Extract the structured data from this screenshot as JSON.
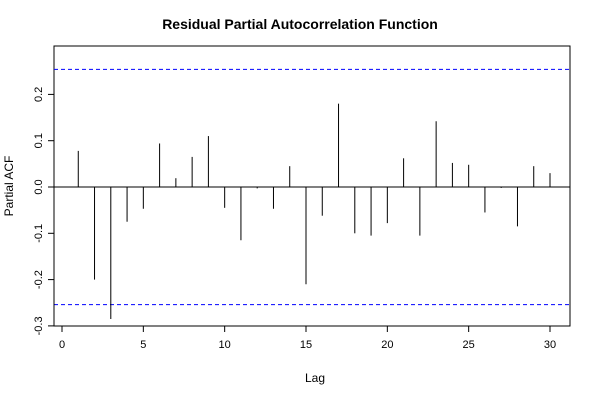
{
  "chart_data": {
    "type": "bar",
    "title": "Residual Partial Autocorrelation Function",
    "xlabel": "Lag",
    "ylabel": "Partial ACF",
    "xlim": [
      0,
      31
    ],
    "ylim": [
      -0.3,
      0.27
    ],
    "x_ticks": [
      0,
      5,
      10,
      15,
      20,
      25,
      30
    ],
    "y_ticks": [
      -0.3,
      -0.2,
      -0.1,
      0.0,
      0.1,
      0.2
    ],
    "x_tick_labels": [
      "0",
      "5",
      "10",
      "15",
      "20",
      "25",
      "30"
    ],
    "y_tick_labels": [
      "-0.3",
      "-0.2",
      "-0.1",
      "0.0",
      "0.1",
      "0.2"
    ],
    "confidence_bounds": [
      0.254,
      -0.254
    ],
    "bound_color": "#0000ff",
    "grid": false,
    "lags": [
      1,
      2,
      3,
      4,
      5,
      6,
      7,
      8,
      9,
      10,
      11,
      12,
      13,
      14,
      15,
      16,
      17,
      18,
      19,
      20,
      21,
      22,
      23,
      24,
      25,
      26,
      27,
      28,
      29,
      30
    ],
    "values": [
      0.078,
      -0.2,
      -0.285,
      -0.075,
      -0.047,
      0.094,
      0.019,
      0.065,
      0.11,
      -0.045,
      -0.115,
      -0.003,
      -0.047,
      0.045,
      -0.21,
      -0.062,
      0.18,
      -0.1,
      -0.105,
      -0.078,
      0.062,
      -0.105,
      0.142,
      0.052,
      0.048,
      -0.055,
      -0.002,
      -0.085,
      0.045,
      0.03
    ]
  }
}
